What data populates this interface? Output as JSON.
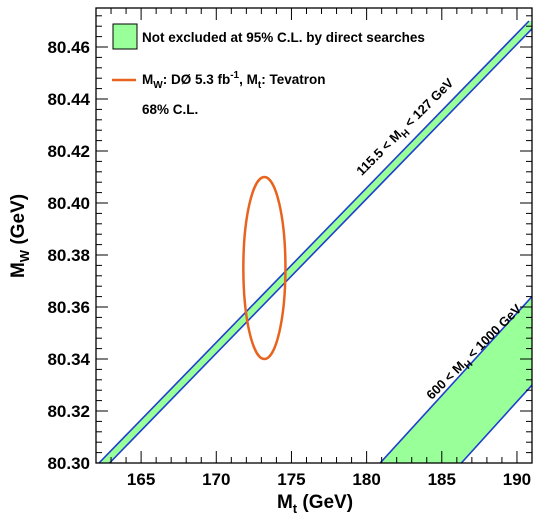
{
  "chart_data": {
    "type": "area",
    "xlabel": "M",
    "xlabel_sub": "t",
    "xlabel_unit": " (GeV)",
    "ylabel": "M",
    "ylabel_sub": "W",
    "ylabel_unit": " (GeV)",
    "xlim": [
      162,
      191
    ],
    "ylim": [
      80.3,
      80.475
    ],
    "x_ticks": [
      165,
      170,
      175,
      180,
      185,
      190
    ],
    "x_tick_labels": [
      "165",
      "170",
      "175",
      "180",
      "185",
      "190"
    ],
    "y_ticks": [
      80.3,
      80.32,
      80.34,
      80.36,
      80.38,
      80.4,
      80.42,
      80.44,
      80.46
    ],
    "y_tick_labels": [
      "80.30",
      "80.32",
      "80.34",
      "80.36",
      "80.38",
      "80.40",
      "80.42",
      "80.44",
      "80.46"
    ],
    "bands": [
      {
        "label_pre": "115.5 < M",
        "label_sub": "H",
        "label_post": " < 127 GeV",
        "lower_edge": [
          [
            162.9,
            80.3
          ],
          [
            191.5,
            80.47
          ]
        ],
        "upper_edge": [
          [
            162.2,
            80.3
          ],
          [
            190.8,
            80.47
          ]
        ],
        "fill": "#99ff99",
        "edge_color": "#1f3fcf"
      },
      {
        "label_pre": "600 < M",
        "label_sub": "H",
        "label_post": " < 1000 GeV",
        "lower_edge": [
          [
            186.3,
            80.3
          ],
          [
            191.0,
            80.33
          ]
        ],
        "upper_edge": [
          [
            180.9,
            80.3
          ],
          [
            191.0,
            80.364
          ]
        ],
        "fill": "#99ff99",
        "edge_color": "#1f3fcf"
      }
    ],
    "ellipse": {
      "center_x": 173.2,
      "center_y": 80.375,
      "half_width": 1.4,
      "half_height": 0.035,
      "color": "#e8641e"
    },
    "legend": {
      "box_label": "Not excluded at 95% C.L. by direct searches",
      "line_label_p1": "M",
      "line_label_sub1": "W",
      "line_label_p2": ": DØ 5.3 fb",
      "line_label_sup": "-1",
      "line_label_p3": ", M",
      "line_label_sub2": "t",
      "line_label_p4": ": Tevatron",
      "line_label_2": "68% C.L.",
      "position": "top-left"
    },
    "grid": false
  }
}
